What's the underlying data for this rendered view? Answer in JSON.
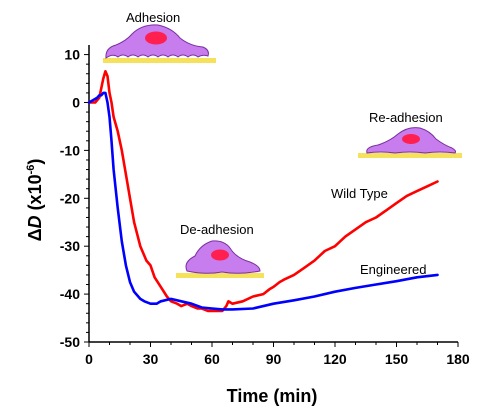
{
  "chart_data": {
    "type": "line",
    "title": "",
    "xlabel": "Time (min)",
    "ylabel": "ΔD (x10-6)",
    "ylabel_parts": {
      "delta": "Δ",
      "var": "D",
      "rest": " (x10",
      "exp": "-6",
      "close": ")"
    },
    "xlim": [
      0,
      180
    ],
    "ylim": [
      -50,
      12
    ],
    "x_ticks": [
      0,
      30,
      60,
      90,
      120,
      150,
      180
    ],
    "y_ticks": [
      10,
      0,
      -10,
      -20,
      -30,
      -40,
      -50
    ],
    "grid": false,
    "series": [
      {
        "name": "Wild Type",
        "color": "#ff0000",
        "x": [
          0,
          3,
          5,
          6,
          7,
          8,
          9,
          10,
          11,
          12,
          14,
          16,
          18,
          20,
          22,
          25,
          28,
          30,
          32,
          35,
          38,
          40,
          43,
          45,
          48,
          50,
          53,
          55,
          58,
          60,
          63,
          65,
          67,
          68,
          70,
          75,
          80,
          85,
          88,
          90,
          93,
          95,
          100,
          105,
          110,
          115,
          120,
          125,
          130,
          135,
          140,
          145,
          150,
          155,
          160,
          165,
          170
        ],
        "y": [
          0,
          0,
          1,
          3,
          5,
          6.5,
          5.5,
          2,
          0,
          -3,
          -6,
          -10,
          -15,
          -20,
          -25,
          -30,
          -33,
          -34,
          -36.5,
          -38.5,
          -40.5,
          -41.5,
          -42,
          -42.5,
          -42,
          -42.5,
          -43,
          -43,
          -43.5,
          -43.5,
          -43.5,
          -43.5,
          -42.5,
          -41.5,
          -42,
          -41.5,
          -40.5,
          -40,
          -39,
          -38.5,
          -37.5,
          -37,
          -36,
          -34.5,
          -33,
          -31,
          -30,
          -28,
          -26.5,
          -25,
          -24,
          -22.5,
          -21,
          -19.5,
          -18.5,
          -17.5,
          -16.5
        ]
      },
      {
        "name": "Engineered",
        "color": "#0000ff",
        "x": [
          0,
          2,
          4,
          5,
          6,
          7,
          8,
          9,
          10,
          11,
          12,
          14,
          16,
          18,
          20,
          22,
          25,
          27,
          30,
          33,
          35,
          40,
          45,
          50,
          55,
          60,
          65,
          70,
          80,
          90,
          100,
          110,
          120,
          130,
          140,
          150,
          160,
          170
        ],
        "y": [
          0,
          0.5,
          1,
          1.5,
          1.5,
          2,
          2,
          0,
          -3,
          -8,
          -14,
          -22,
          -29,
          -34,
          -37.5,
          -39.5,
          -41,
          -41.5,
          -42,
          -42,
          -41.5,
          -41,
          -41.5,
          -42,
          -42.8,
          -43,
          -43.2,
          -43.2,
          -43,
          -42,
          -41.3,
          -40.5,
          -39.5,
          -38.7,
          -38,
          -37.3,
          -36.5,
          -36
        ]
      }
    ],
    "annotations": {
      "adhesion": "Adhesion",
      "de_adhesion": "De-adhesion",
      "re_adhesion": "Re-adhesion",
      "wild_type": "Wild Type",
      "engineered": "Engineered"
    }
  },
  "colors": {
    "cell_fill": "#c77dee",
    "cell_stroke": "#7a2fa0",
    "nucleus": "#ff2050",
    "substrate": "#f5e15c"
  }
}
